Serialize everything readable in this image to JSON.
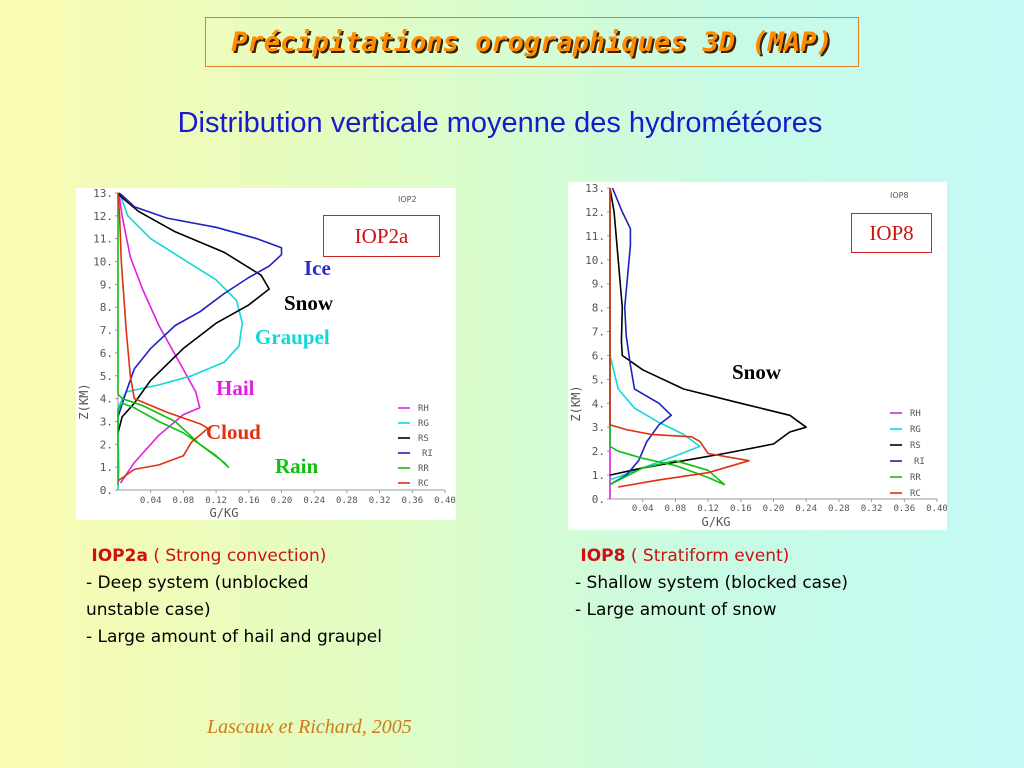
{
  "title": "Précipitations orographiques 3D (MAP)",
  "subtitle": "Distribution verticale moyenne des hydrométéores",
  "colors": {
    "title": "#ff8c00",
    "subtitle": "#1a1acc",
    "case_label": "#d01010",
    "citation": "#cf7a18"
  },
  "chart_data": [
    {
      "type": "line",
      "case_label": "IOP2a",
      "panel_tag": "IOP2",
      "xlabel": "G/KG",
      "ylabel": "Z(KM)",
      "xlim": [
        0,
        0.4
      ],
      "ylim": [
        0,
        13
      ],
      "x_ticks": [
        "0.04",
        "0.08",
        "0.12",
        "0.16",
        "0.20",
        "0.24",
        "0.28",
        "0.32",
        "0.36",
        "0.40"
      ],
      "y_ticks": [
        "0.",
        "1.",
        "2.",
        "3.",
        "4.",
        "5.",
        "6.",
        "7.",
        "8.",
        "9.",
        "10.",
        "11.",
        "12.",
        "13."
      ],
      "grid": false,
      "legend_position": "lower-right",
      "legend": [
        "RH",
        "RG",
        "RS",
        "RI",
        "RR",
        "RC"
      ],
      "annotations": [
        {
          "text": "Ice",
          "color": "#2a2ad0"
        },
        {
          "text": "Snow",
          "color": "#000000"
        },
        {
          "text": "Graupel",
          "color": "#10d8d8"
        },
        {
          "text": "Hail",
          "color": "#e020e0"
        },
        {
          "text": "Cloud",
          "color": "#e03010"
        },
        {
          "text": "Rain",
          "color": "#10c010"
        }
      ],
      "series": [
        {
          "name": "RH",
          "color": "#e020e0",
          "points": [
            [
              0.003,
              0.3
            ],
            [
              0.02,
              1.2
            ],
            [
              0.05,
              2.4
            ],
            [
              0.08,
              3.3
            ],
            [
              0.1,
              3.6
            ],
            [
              0.095,
              4.3
            ],
            [
              0.075,
              5.6
            ],
            [
              0.05,
              7.2
            ],
            [
              0.03,
              8.8
            ],
            [
              0.015,
              10.2
            ],
            [
              0.005,
              12.0
            ],
            [
              0.001,
              13.0
            ]
          ]
        },
        {
          "name": "RG",
          "color": "#10d8d8",
          "points": [
            [
              0.0,
              0.0
            ],
            [
              0.001,
              1.0
            ],
            [
              0.0,
              2.2
            ],
            [
              0.0,
              3.6
            ],
            [
              0.01,
              4.3
            ],
            [
              0.05,
              4.6
            ],
            [
              0.09,
              5.0
            ],
            [
              0.13,
              5.6
            ],
            [
              0.148,
              6.3
            ],
            [
              0.152,
              7.3
            ],
            [
              0.145,
              8.3
            ],
            [
              0.12,
              9.2
            ],
            [
              0.08,
              10.1
            ],
            [
              0.04,
              11.0
            ],
            [
              0.012,
              12.0
            ],
            [
              0.002,
              13.0
            ]
          ]
        },
        {
          "name": "RS",
          "color": "#000000",
          "points": [
            [
              0.0,
              2.5
            ],
            [
              0.005,
              3.2
            ],
            [
              0.02,
              3.8
            ],
            [
              0.04,
              4.8
            ],
            [
              0.08,
              6.2
            ],
            [
              0.12,
              7.3
            ],
            [
              0.16,
              8.1
            ],
            [
              0.185,
              8.8
            ],
            [
              0.175,
              9.4
            ],
            [
              0.13,
              10.4
            ],
            [
              0.07,
              11.3
            ],
            [
              0.025,
              12.2
            ],
            [
              0.005,
              12.8
            ],
            [
              0.0,
              13.0
            ]
          ]
        },
        {
          "name": "RI",
          "color": "#2020c0",
          "points": [
            [
              0.0,
              3.2
            ],
            [
              0.01,
              4.3
            ],
            [
              0.02,
              5.3
            ],
            [
              0.04,
              6.2
            ],
            [
              0.07,
              7.2
            ],
            [
              0.1,
              7.8
            ],
            [
              0.13,
              8.6
            ],
            [
              0.16,
              9.3
            ],
            [
              0.185,
              9.8
            ],
            [
              0.2,
              10.3
            ],
            [
              0.2,
              10.6
            ],
            [
              0.17,
              11.0
            ],
            [
              0.12,
              11.5
            ],
            [
              0.06,
              11.9
            ],
            [
              0.02,
              12.4
            ],
            [
              0.005,
              12.9
            ],
            [
              0.001,
              13.0
            ]
          ]
        },
        {
          "name": "RR",
          "color": "#10c010",
          "points": [
            [
              0.0,
              0.2
            ],
            [
              0.0,
              2.0
            ],
            [
              0.0,
              3.5
            ],
            [
              0.005,
              3.8
            ],
            [
              0.02,
              3.6
            ],
            [
              0.05,
              3.0
            ],
            [
              0.08,
              2.5
            ],
            [
              0.1,
              2.0
            ],
            [
              0.12,
              1.5
            ],
            [
              0.135,
              1.0
            ],
            [
              0.13,
              1.2
            ],
            [
              0.1,
              2.0
            ],
            [
              0.07,
              3.0
            ],
            [
              0.03,
              3.7
            ],
            [
              0.005,
              4.0
            ],
            [
              0.0,
              4.2
            ],
            [
              0.0,
              13.0
            ]
          ]
        },
        {
          "name": "RC",
          "color": "#e03010",
          "points": [
            [
              0.0,
              0.4
            ],
            [
              0.02,
              0.9
            ],
            [
              0.05,
              1.1
            ],
            [
              0.08,
              1.5
            ],
            [
              0.09,
              2.1
            ],
            [
              0.1,
              2.4
            ],
            [
              0.11,
              2.7
            ],
            [
              0.1,
              2.9
            ],
            [
              0.06,
              3.4
            ],
            [
              0.02,
              4.0
            ],
            [
              0.015,
              5.0
            ],
            [
              0.01,
              7.0
            ],
            [
              0.004,
              10.0
            ],
            [
              0.002,
              12.0
            ],
            [
              0.0,
              13.0
            ]
          ]
        }
      ]
    },
    {
      "type": "line",
      "case_label": "IOP8",
      "panel_tag": "IOP8",
      "xlabel": "G/KG",
      "ylabel": "Z(KM)",
      "xlim": [
        0,
        0.4
      ],
      "ylim": [
        0,
        13
      ],
      "x_ticks": [
        "0.04",
        "0.08",
        "0.12",
        "0.16",
        "0.20",
        "0.24",
        "0.28",
        "0.32",
        "0.36",
        "0.40"
      ],
      "y_ticks": [
        "0.",
        "1.",
        "2.",
        "3.",
        "4.",
        "5.",
        "6.",
        "7.",
        "8.",
        "9.",
        "10.",
        "11.",
        "12.",
        "13."
      ],
      "grid": false,
      "legend_position": "lower-right",
      "legend": [
        "RH",
        "RG",
        "RS",
        "RI",
        "RR",
        "RC"
      ],
      "annotations": [
        {
          "text": "Snow",
          "color": "#000000"
        }
      ],
      "series": [
        {
          "name": "RH",
          "color": "#e020e0",
          "points": [
            [
              0.0,
              0.0
            ],
            [
              0.0,
              13.0
            ]
          ]
        },
        {
          "name": "RG",
          "color": "#10d8d8",
          "points": [
            [
              0.0,
              0.8
            ],
            [
              0.04,
              1.3
            ],
            [
              0.08,
              1.8
            ],
            [
              0.11,
              2.2
            ],
            [
              0.09,
              2.7
            ],
            [
              0.06,
              3.2
            ],
            [
              0.03,
              3.8
            ],
            [
              0.01,
              4.6
            ],
            [
              0.005,
              5.3
            ],
            [
              0.0,
              6.0
            ],
            [
              0.0,
              13.0
            ]
          ]
        },
        {
          "name": "RS",
          "color": "#000000",
          "points": [
            [
              0.0,
              1.0
            ],
            [
              0.04,
              1.3
            ],
            [
              0.09,
              1.6
            ],
            [
              0.14,
              1.9
            ],
            [
              0.2,
              2.3
            ],
            [
              0.22,
              2.8
            ],
            [
              0.24,
              3.0
            ],
            [
              0.22,
              3.5
            ],
            [
              0.16,
              4.0
            ],
            [
              0.09,
              4.6
            ],
            [
              0.04,
              5.4
            ],
            [
              0.015,
              6.0
            ],
            [
              0.014,
              6.6
            ],
            [
              0.015,
              8.0
            ],
            [
              0.01,
              10.0
            ],
            [
              0.005,
              12.0
            ],
            [
              0.0,
              13.0
            ]
          ]
        },
        {
          "name": "RI",
          "color": "#2020c0",
          "points": [
            [
              0.0,
              0.6
            ],
            [
              0.02,
              1.0
            ],
            [
              0.035,
              1.6
            ],
            [
              0.045,
              2.4
            ],
            [
              0.06,
              3.1
            ],
            [
              0.075,
              3.5
            ],
            [
              0.06,
              4.0
            ],
            [
              0.03,
              4.6
            ],
            [
              0.025,
              5.6
            ],
            [
              0.02,
              6.8
            ],
            [
              0.018,
              8.0
            ],
            [
              0.022,
              9.5
            ],
            [
              0.025,
              10.6
            ],
            [
              0.025,
              11.3
            ],
            [
              0.015,
              12.0
            ],
            [
              0.003,
              13.0
            ]
          ]
        },
        {
          "name": "RR",
          "color": "#10c010",
          "points": [
            [
              0.0,
              0.6
            ],
            [
              0.04,
              1.3
            ],
            [
              0.08,
              1.6
            ],
            [
              0.12,
              1.2
            ],
            [
              0.14,
              0.6
            ],
            [
              0.12,
              0.9
            ],
            [
              0.08,
              1.4
            ],
            [
              0.04,
              1.7
            ],
            [
              0.01,
              2.0
            ],
            [
              0.0,
              2.2
            ],
            [
              0.0,
              13.0
            ]
          ]
        },
        {
          "name": "RC",
          "color": "#e03010",
          "points": [
            [
              0.01,
              0.5
            ],
            [
              0.06,
              0.8
            ],
            [
              0.12,
              1.1
            ],
            [
              0.17,
              1.6
            ],
            [
              0.12,
              1.9
            ],
            [
              0.11,
              2.4
            ],
            [
              0.1,
              2.6
            ],
            [
              0.05,
              2.7
            ],
            [
              0.02,
              2.9
            ],
            [
              0.0,
              3.1
            ],
            [
              0.0,
              13.0
            ]
          ]
        }
      ]
    }
  ],
  "captions": [
    {
      "case": "IOP2a",
      "description": "( Strong convection)",
      "lines": [
        "- Deep system (unblocked",
        "unstable case)",
        "- Large amount of hail and graupel"
      ]
    },
    {
      "case": "IOP8",
      "description": "( Stratiform event)",
      "lines": [
        "- Shallow system (blocked case)",
        "- Large amount of snow"
      ]
    }
  ],
  "citation": "Lascaux et Richard, 2005"
}
